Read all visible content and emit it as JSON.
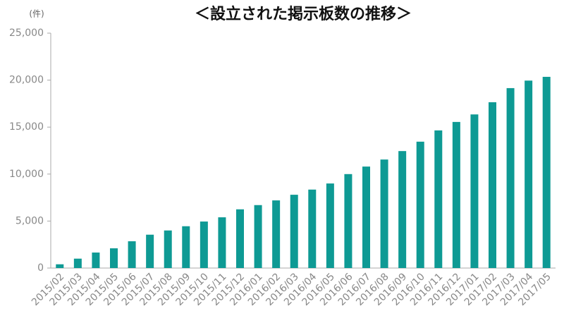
{
  "chart_data": {
    "type": "bar",
    "title": "＜設立された掲示板数の推移＞",
    "y_label": "(件)",
    "categories": [
      "2015/02",
      "2015/03",
      "2015/04",
      "2015/05",
      "2015/06",
      "2015/07",
      "2015/08",
      "2015/09",
      "2015/10",
      "2015/11",
      "2015/12",
      "2016/01",
      "2016/02",
      "2016/03",
      "2016/04",
      "2016/05",
      "2016/06",
      "2016/07",
      "2016/08",
      "2016/09",
      "2016/10",
      "2016/11",
      "2016/12",
      "2017/01",
      "2017/02",
      "2017/03",
      "2017/04",
      "2017/05"
    ],
    "values": [
      400,
      1000,
      1650,
      2100,
      2850,
      3550,
      4000,
      4450,
      4950,
      5400,
      6250,
      6700,
      7200,
      7800,
      8350,
      9000,
      10000,
      10800,
      11550,
      12450,
      13450,
      14650,
      15550,
      16350,
      17650,
      19150,
      19950,
      20350
    ],
    "color": "#0e9a94",
    "ylim": [
      0,
      25000
    ],
    "yticks": [
      0,
      {
        "value": 5000,
        "label": "5,000"
      },
      {
        "value": 10000,
        "label": "10,000"
      },
      {
        "value": 15000,
        "label": "15,000"
      },
      {
        "value": 20000,
        "label": "20,000"
      },
      {
        "value": 25000,
        "label": "25,000"
      }
    ],
    "grid": false
  }
}
